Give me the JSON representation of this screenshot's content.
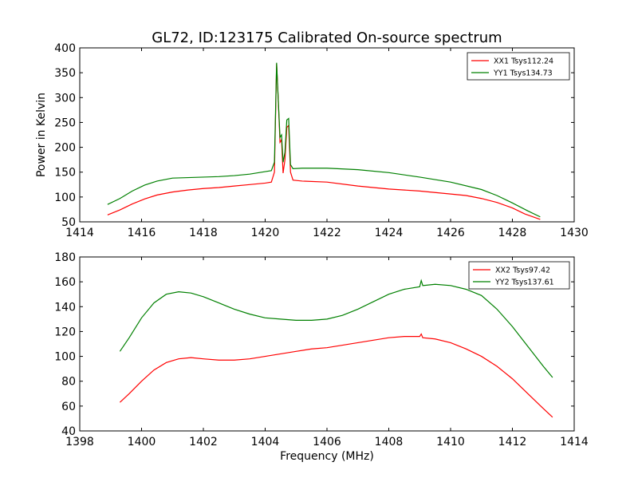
{
  "title": "GL72, ID:123175 Calibrated On-source spectrum",
  "chart_data": [
    {
      "type": "line",
      "ylabel": "Power in Kelvin",
      "xlabel": "",
      "xlim": [
        1414,
        1430
      ],
      "ylim": [
        50,
        400
      ],
      "xticks": [
        "1414",
        "1416",
        "1418",
        "1420",
        "1422",
        "1424",
        "1426",
        "1428",
        "1430"
      ],
      "yticks": [
        "50",
        "100",
        "150",
        "200",
        "250",
        "300",
        "350",
        "400"
      ],
      "legend_position": "top-right",
      "series": [
        {
          "name": "XX1 Tsys112.24",
          "color": "#ff0000",
          "points": [
            [
              1414.9,
              64
            ],
            [
              1415.3,
              74
            ],
            [
              1415.7,
              86
            ],
            [
              1416.1,
              96
            ],
            [
              1416.5,
              104
            ],
            [
              1417.0,
              110
            ],
            [
              1417.5,
              114
            ],
            [
              1418.0,
              117
            ],
            [
              1418.5,
              119
            ],
            [
              1419.0,
              122
            ],
            [
              1419.5,
              125
            ],
            [
              1420.0,
              128
            ],
            [
              1420.2,
              130
            ],
            [
              1420.3,
              150
            ],
            [
              1420.37,
              368
            ],
            [
              1420.42,
              300
            ],
            [
              1420.48,
              210
            ],
            [
              1420.53,
              215
            ],
            [
              1420.58,
              148
            ],
            [
              1420.64,
              175
            ],
            [
              1420.7,
              240
            ],
            [
              1420.76,
              244
            ],
            [
              1420.82,
              150
            ],
            [
              1420.9,
              134
            ],
            [
              1421.2,
              132
            ],
            [
              1422,
              130
            ],
            [
              1423,
              122
            ],
            [
              1424,
              116
            ],
            [
              1425,
              112
            ],
            [
              1426,
              106
            ],
            [
              1426.5,
              103
            ],
            [
              1427,
              97
            ],
            [
              1427.5,
              89
            ],
            [
              1428,
              78
            ],
            [
              1428.4,
              66
            ],
            [
              1428.9,
              55
            ]
          ]
        },
        {
          "name": "YY1 Tsys134.73",
          "color": "#008000",
          "points": [
            [
              1414.9,
              85
            ],
            [
              1415.3,
              97
            ],
            [
              1415.7,
              112
            ],
            [
              1416.1,
              124
            ],
            [
              1416.5,
              132
            ],
            [
              1417.0,
              138
            ],
            [
              1417.5,
              139
            ],
            [
              1418.0,
              140
            ],
            [
              1418.5,
              141
            ],
            [
              1419.0,
              143
            ],
            [
              1419.5,
              146
            ],
            [
              1420.0,
              151
            ],
            [
              1420.2,
              153
            ],
            [
              1420.3,
              170
            ],
            [
              1420.37,
              370
            ],
            [
              1420.42,
              300
            ],
            [
              1420.48,
              220
            ],
            [
              1420.53,
              225
            ],
            [
              1420.58,
              170
            ],
            [
              1420.64,
              190
            ],
            [
              1420.7,
              255
            ],
            [
              1420.76,
              258
            ],
            [
              1420.82,
              165
            ],
            [
              1420.9,
              157
            ],
            [
              1421.2,
              158
            ],
            [
              1422,
              158
            ],
            [
              1423,
              155
            ],
            [
              1424,
              149
            ],
            [
              1425,
              140
            ],
            [
              1426,
              130
            ],
            [
              1427,
              115
            ],
            [
              1427.5,
              103
            ],
            [
              1428,
              88
            ],
            [
              1428.5,
              72
            ],
            [
              1428.9,
              60
            ]
          ]
        }
      ]
    },
    {
      "type": "line",
      "ylabel": "",
      "xlabel": "Frequency (MHz)",
      "xlim": [
        1398,
        1414
      ],
      "ylim": [
        40,
        180
      ],
      "xticks": [
        "1398",
        "1400",
        "1402",
        "1404",
        "1406",
        "1408",
        "1410",
        "1412",
        "1414"
      ],
      "yticks": [
        "40",
        "60",
        "80",
        "100",
        "120",
        "140",
        "160",
        "180"
      ],
      "legend_position": "top-right",
      "series": [
        {
          "name": "XX2 Tsys97.42",
          "color": "#ff0000",
          "points": [
            [
              1399.3,
              63
            ],
            [
              1399.6,
              70
            ],
            [
              1400,
              80
            ],
            [
              1400.4,
              89
            ],
            [
              1400.8,
              95
            ],
            [
              1401.2,
              98
            ],
            [
              1401.6,
              99
            ],
            [
              1402,
              98
            ],
            [
              1402.5,
              97
            ],
            [
              1403,
              97
            ],
            [
              1403.5,
              98
            ],
            [
              1404,
              100
            ],
            [
              1404.5,
              102
            ],
            [
              1405,
              104
            ],
            [
              1405.5,
              106
            ],
            [
              1406,
              107
            ],
            [
              1406.5,
              109
            ],
            [
              1407,
              111
            ],
            [
              1407.5,
              113
            ],
            [
              1408,
              115
            ],
            [
              1408.5,
              116
            ],
            [
              1409,
              116
            ],
            [
              1409.05,
              118
            ],
            [
              1409.1,
              115
            ],
            [
              1409.5,
              114
            ],
            [
              1410,
              111
            ],
            [
              1410.5,
              106
            ],
            [
              1411,
              100
            ],
            [
              1411.5,
              92
            ],
            [
              1412,
              82
            ],
            [
              1412.5,
              70
            ],
            [
              1413,
              58
            ],
            [
              1413.3,
              51
            ]
          ]
        },
        {
          "name": "YY2 Tsys137.61",
          "color": "#008000",
          "points": [
            [
              1399.3,
              104
            ],
            [
              1399.6,
              115
            ],
            [
              1400,
              131
            ],
            [
              1400.4,
              143
            ],
            [
              1400.8,
              150
            ],
            [
              1401.2,
              152
            ],
            [
              1401.6,
              151
            ],
            [
              1402,
              148
            ],
            [
              1402.5,
              143
            ],
            [
              1403,
              138
            ],
            [
              1403.5,
              134
            ],
            [
              1404,
              131
            ],
            [
              1404.5,
              130
            ],
            [
              1405,
              129
            ],
            [
              1405.5,
              129
            ],
            [
              1406,
              130
            ],
            [
              1406.5,
              133
            ],
            [
              1407,
              138
            ],
            [
              1407.5,
              144
            ],
            [
              1408,
              150
            ],
            [
              1408.5,
              154
            ],
            [
              1409,
              156
            ],
            [
              1409.05,
              161
            ],
            [
              1409.1,
              157
            ],
            [
              1409.5,
              158
            ],
            [
              1410,
              157
            ],
            [
              1410.5,
              154
            ],
            [
              1411,
              149
            ],
            [
              1411.5,
              138
            ],
            [
              1412,
              124
            ],
            [
              1412.5,
              108
            ],
            [
              1413,
              92
            ],
            [
              1413.3,
              83
            ]
          ]
        }
      ]
    }
  ]
}
